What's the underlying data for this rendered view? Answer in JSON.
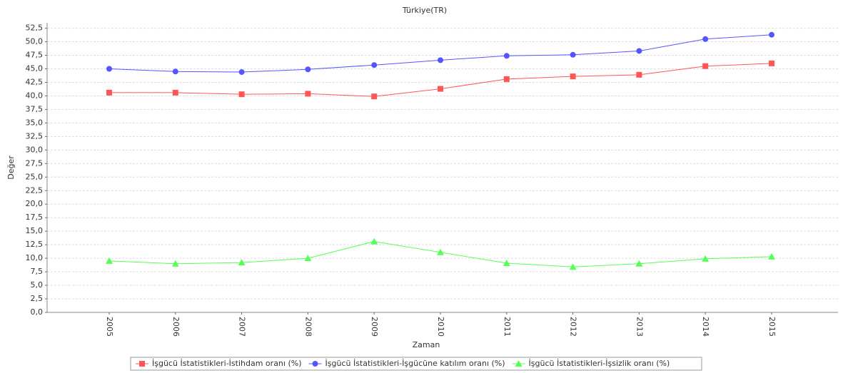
{
  "chart_data": {
    "type": "line",
    "title": "Türkiye(TR)",
    "x_label": "Zaman",
    "y_label": "Değer",
    "categories": [
      "2005",
      "2006",
      "2007",
      "2008",
      "2009",
      "2010",
      "2011",
      "2012",
      "2013",
      "2014",
      "2015"
    ],
    "series": [
      {
        "name": "İşgücü İstatistikleri-İstihdam oranı (%)",
        "color": "#ff5555",
        "marker": "square",
        "values": [
          40.6,
          40.6,
          40.3,
          40.4,
          39.9,
          41.3,
          43.1,
          43.6,
          43.9,
          45.5,
          46.0
        ]
      },
      {
        "name": "İşgücü İstatistikleri-İşgücüne katılım oranı (%)",
        "color": "#5555ff",
        "marker": "circle",
        "values": [
          45.0,
          44.5,
          44.4,
          44.9,
          45.7,
          46.6,
          47.4,
          47.6,
          48.3,
          50.5,
          51.3
        ]
      },
      {
        "name": "İşgücü İstatistikleri-İşsizlik oranı (%)",
        "color": "#55ff55",
        "marker": "triangle",
        "values": [
          9.5,
          9.0,
          9.2,
          10.0,
          13.1,
          11.1,
          9.1,
          8.4,
          9.0,
          9.9,
          10.3
        ]
      }
    ],
    "ylim": [
      0,
      53.5
    ],
    "yticks": [
      {
        "value": 0,
        "label": "0,0"
      },
      {
        "value": 2.5,
        "label": "2,5"
      },
      {
        "value": 5,
        "label": "5,0"
      },
      {
        "value": 7.5,
        "label": "7,5"
      },
      {
        "value": 10,
        "label": "10,0"
      },
      {
        "value": 12.5,
        "label": "12,5"
      },
      {
        "value": 15,
        "label": "15,0"
      },
      {
        "value": 17.5,
        "label": "17,5"
      },
      {
        "value": 20,
        "label": "20,0"
      },
      {
        "value": 22.5,
        "label": "22,5"
      },
      {
        "value": 25,
        "label": "25,0"
      },
      {
        "value": 27.5,
        "label": "27,5"
      },
      {
        "value": 30,
        "label": "30,0"
      },
      {
        "value": 32.5,
        "label": "32,5"
      },
      {
        "value": 35,
        "label": "35,0"
      },
      {
        "value": 37.5,
        "label": "37,5"
      },
      {
        "value": 40,
        "label": "40,0"
      },
      {
        "value": 42.5,
        "label": "42,5"
      },
      {
        "value": 45,
        "label": "45,0"
      },
      {
        "value": 47.5,
        "label": "47,5"
      },
      {
        "value": 50,
        "label": "50,0"
      },
      {
        "value": 52.5,
        "label": "52,5"
      }
    ],
    "grid": true
  }
}
